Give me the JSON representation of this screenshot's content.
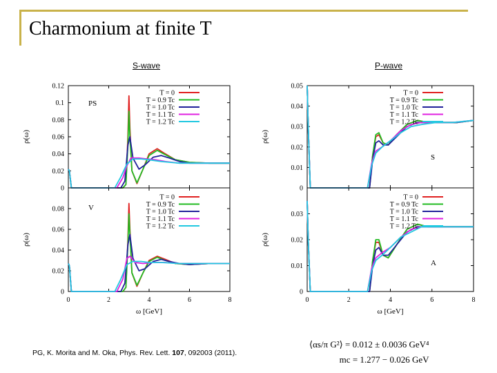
{
  "slide": {
    "title": "Charmonium at finite T",
    "panel_left_label": "S-wave",
    "panel_right_label": "P-wave",
    "citation_pre": "PG, K. Morita and M. Oka, Phys. Rev. Lett. ",
    "citation_vol": "107",
    "citation_post": ", 092003 (2011).",
    "formula_line1_lhs": "⟨αs/π G²⟩",
    "formula_line1_rhs": "= 0.012 ± 0.0036 GeV⁴",
    "formula_line2_lhs": "mc",
    "formula_line2_rhs": "= 1.277 − 0.026 GeV",
    "accent_color": "#c9b24a"
  },
  "legend": [
    "T = 0",
    "T = 0.9 Tc",
    "T = 1.0 Tc",
    "T = 1.1 Tc",
    "T = 1.2 Tc"
  ],
  "series_colors": [
    "#e02020",
    "#22bb22",
    "#20209a",
    "#e020e0",
    "#20c8e0"
  ],
  "chart_data": [
    {
      "type": "line",
      "panel": "S-wave PS",
      "label": "PS",
      "xlabel": "ω [GeV]",
      "ylabel": "ρ(ω)",
      "xlim": [
        0,
        8
      ],
      "ylim": [
        0,
        0.12
      ],
      "xticks": [
        "0",
        "2",
        "4",
        "6",
        "8"
      ],
      "yticks": [
        "0",
        "0.02",
        "0.04",
        "0.06",
        "0.08",
        "0.1",
        "0.12"
      ],
      "series": [
        {
          "name": "T = 0",
          "x": [
            0,
            0.05,
            0.15,
            2.7,
            2.85,
            2.95,
            3.0,
            3.05,
            3.15,
            3.4,
            3.7,
            4.0,
            4.4,
            4.8,
            5.3,
            6.0,
            7.0,
            8.0
          ],
          "y": [
            0.022,
            0.02,
            0,
            0,
            0.004,
            0.06,
            0.108,
            0.07,
            0.02,
            0.005,
            0.022,
            0.04,
            0.046,
            0.04,
            0.033,
            0.03,
            0.029,
            0.029
          ]
        },
        {
          "name": "T = 0.9 Tc",
          "x": [
            0,
            0.05,
            0.15,
            2.7,
            2.85,
            2.95,
            3.0,
            3.05,
            3.15,
            3.4,
            3.7,
            4.0,
            4.4,
            4.8,
            5.3,
            6.0,
            7.0,
            8.0
          ],
          "y": [
            0.022,
            0.02,
            0,
            0,
            0.004,
            0.05,
            0.09,
            0.06,
            0.02,
            0.006,
            0.022,
            0.038,
            0.044,
            0.039,
            0.033,
            0.03,
            0.029,
            0.029
          ]
        },
        {
          "name": "T = 1.0 Tc",
          "x": [
            0,
            0.05,
            0.15,
            2.6,
            2.8,
            2.95,
            3.05,
            3.2,
            3.5,
            3.8,
            4.2,
            4.6,
            5.0,
            5.5,
            6.0,
            7.0,
            8.0
          ],
          "y": [
            0.022,
            0.02,
            0,
            0,
            0.008,
            0.05,
            0.06,
            0.035,
            0.022,
            0.027,
            0.036,
            0.038,
            0.035,
            0.031,
            0.029,
            0.029,
            0.029
          ]
        },
        {
          "name": "T = 1.1 Tc",
          "x": [
            0,
            0.05,
            0.15,
            2.4,
            2.7,
            2.9,
            3.1,
            3.5,
            3.9,
            4.3,
            4.8,
            5.5,
            6.5,
            8.0
          ],
          "y": [
            0.022,
            0.02,
            0,
            0,
            0.012,
            0.026,
            0.035,
            0.035,
            0.034,
            0.033,
            0.031,
            0.029,
            0.029,
            0.029
          ]
        },
        {
          "name": "T = 1.2 Tc",
          "x": [
            0,
            0.05,
            0.15,
            2.3,
            2.6,
            2.9,
            3.2,
            3.6,
            4.0,
            4.6,
            5.5,
            6.5,
            8.0
          ],
          "y": [
            0.022,
            0.02,
            0,
            0,
            0.013,
            0.028,
            0.034,
            0.034,
            0.033,
            0.031,
            0.029,
            0.029,
            0.029
          ]
        }
      ]
    },
    {
      "type": "line",
      "panel": "S-wave V",
      "label": "V",
      "xlabel": "ω [GeV]",
      "ylabel": "ρ(ω)",
      "xlim": [
        0,
        8
      ],
      "ylim": [
        0,
        0.1
      ],
      "xticks": [
        "0",
        "2",
        "4",
        "6",
        "8"
      ],
      "yticks": [
        "0",
        "0.02",
        "0.04",
        "0.06",
        "0.08"
      ],
      "series": [
        {
          "name": "T = 0",
          "x": [
            0,
            0.05,
            0.15,
            2.7,
            2.85,
            2.95,
            3.0,
            3.05,
            3.15,
            3.4,
            3.7,
            4.0,
            4.4,
            4.8,
            5.3,
            6.0,
            7.0,
            8.0
          ],
          "y": [
            0.027,
            0.025,
            0,
            0,
            0.004,
            0.05,
            0.085,
            0.06,
            0.018,
            0.005,
            0.018,
            0.03,
            0.034,
            0.031,
            0.027,
            0.026,
            0.027,
            0.027
          ]
        },
        {
          "name": "T = 0.9 Tc",
          "x": [
            0,
            0.05,
            0.15,
            2.7,
            2.85,
            2.95,
            3.0,
            3.05,
            3.15,
            3.4,
            3.7,
            4.0,
            4.4,
            4.8,
            5.3,
            6.0,
            7.0,
            8.0
          ],
          "y": [
            0.027,
            0.025,
            0,
            0,
            0.004,
            0.045,
            0.075,
            0.055,
            0.018,
            0.006,
            0.018,
            0.029,
            0.033,
            0.03,
            0.027,
            0.026,
            0.027,
            0.027
          ]
        },
        {
          "name": "T = 1.0 Tc",
          "x": [
            0,
            0.05,
            0.15,
            2.6,
            2.8,
            2.95,
            3.05,
            3.2,
            3.5,
            3.8,
            4.2,
            4.6,
            5.0,
            5.5,
            6.0,
            7.0,
            8.0
          ],
          "y": [
            0.027,
            0.025,
            0,
            0,
            0.008,
            0.045,
            0.055,
            0.032,
            0.02,
            0.022,
            0.029,
            0.031,
            0.029,
            0.027,
            0.026,
            0.027,
            0.027
          ]
        },
        {
          "name": "T = 1.1 Tc",
          "x": [
            0,
            0.05,
            0.15,
            2.4,
            2.7,
            2.9,
            3.05,
            3.3,
            3.7,
            4.2,
            4.8,
            5.5,
            6.5,
            8.0
          ],
          "y": [
            0.027,
            0.025,
            0,
            0,
            0.012,
            0.032,
            0.034,
            0.028,
            0.027,
            0.028,
            0.028,
            0.027,
            0.027,
            0.027
          ]
        },
        {
          "name": "T = 1.2 Tc",
          "x": [
            0,
            0.05,
            0.15,
            2.3,
            2.6,
            2.9,
            3.2,
            3.6,
            4.0,
            4.6,
            5.5,
            6.5,
            8.0
          ],
          "y": [
            0.027,
            0.025,
            0,
            0,
            0.012,
            0.026,
            0.029,
            0.029,
            0.028,
            0.028,
            0.027,
            0.027,
            0.027
          ]
        }
      ]
    },
    {
      "type": "line",
      "panel": "P-wave S",
      "label": "S",
      "xlabel": "ω [GeV]",
      "ylabel": "ρ(ω)",
      "xlim": [
        0,
        8
      ],
      "ylim": [
        0,
        0.05
      ],
      "xticks": [
        "0",
        "2",
        "4",
        "6",
        "8"
      ],
      "yticks": [
        "0",
        "0.01",
        "0.02",
        "0.03",
        "0.04",
        "0.05"
      ],
      "series": [
        {
          "name": "T = 0",
          "x": [
            0,
            0.05,
            0.15,
            3.0,
            3.15,
            3.3,
            3.45,
            3.65,
            3.9,
            4.3,
            4.8,
            5.3,
            5.8,
            6.5,
            7.2,
            8.0
          ],
          "y": [
            0.05,
            0.03,
            0,
            0,
            0.016,
            0.025,
            0.026,
            0.022,
            0.021,
            0.026,
            0.031,
            0.033,
            0.032,
            0.032,
            0.032,
            0.033
          ]
        },
        {
          "name": "T = 0.9 Tc",
          "x": [
            0,
            0.05,
            0.15,
            3.0,
            3.15,
            3.3,
            3.45,
            3.65,
            3.9,
            4.3,
            4.8,
            5.3,
            5.8,
            6.5,
            7.2,
            8.0
          ],
          "y": [
            0.05,
            0.03,
            0,
            0,
            0.016,
            0.026,
            0.027,
            0.022,
            0.021,
            0.026,
            0.031,
            0.033,
            0.032,
            0.032,
            0.032,
            0.033
          ]
        },
        {
          "name": "T = 1.0 Tc",
          "x": [
            0,
            0.05,
            0.15,
            3.0,
            3.15,
            3.3,
            3.45,
            3.65,
            3.9,
            4.3,
            4.8,
            5.3,
            5.8,
            6.5,
            7.2,
            8.0
          ],
          "y": [
            0.05,
            0.03,
            0,
            0,
            0.014,
            0.022,
            0.023,
            0.021,
            0.021,
            0.025,
            0.03,
            0.032,
            0.032,
            0.032,
            0.032,
            0.033
          ]
        },
        {
          "name": "T = 1.1 Tc",
          "x": [
            0,
            0.05,
            0.15,
            2.9,
            3.1,
            3.3,
            3.6,
            4.0,
            4.5,
            5.0,
            5.5,
            6.2,
            7.0,
            8.0
          ],
          "y": [
            0.05,
            0.03,
            0,
            0,
            0.012,
            0.018,
            0.02,
            0.023,
            0.028,
            0.031,
            0.032,
            0.032,
            0.032,
            0.033
          ]
        },
        {
          "name": "T = 1.2 Tc",
          "x": [
            0,
            0.05,
            0.15,
            2.9,
            3.1,
            3.3,
            3.6,
            4.0,
            4.5,
            5.0,
            5.5,
            6.2,
            7.0,
            8.0
          ],
          "y": [
            0.05,
            0.03,
            0,
            0,
            0.011,
            0.017,
            0.02,
            0.023,
            0.027,
            0.03,
            0.031,
            0.032,
            0.032,
            0.033
          ]
        }
      ]
    },
    {
      "type": "line",
      "panel": "P-wave A",
      "label": "A",
      "xlabel": "ω [GeV]",
      "ylabel": "ρ(ω)",
      "xlim": [
        0,
        8
      ],
      "ylim": [
        0,
        0.04
      ],
      "xticks": [
        "0",
        "2",
        "4",
        "6",
        "8"
      ],
      "yticks": [
        "0",
        "0.01",
        "0.02",
        "0.03"
      ],
      "series": [
        {
          "name": "T = 0",
          "x": [
            0,
            0.05,
            0.15,
            3.0,
            3.15,
            3.3,
            3.45,
            3.65,
            3.9,
            4.3,
            4.8,
            5.3,
            5.8,
            6.5,
            7.2,
            8.0
          ],
          "y": [
            0.035,
            0.02,
            0,
            0,
            0.012,
            0.019,
            0.019,
            0.014,
            0.013,
            0.018,
            0.024,
            0.026,
            0.025,
            0.025,
            0.025,
            0.025
          ]
        },
        {
          "name": "T = 0.9 Tc",
          "x": [
            0,
            0.05,
            0.15,
            3.0,
            3.15,
            3.3,
            3.45,
            3.65,
            3.9,
            4.3,
            4.8,
            5.3,
            5.8,
            6.5,
            7.2,
            8.0
          ],
          "y": [
            0.035,
            0.02,
            0,
            0,
            0.012,
            0.02,
            0.02,
            0.014,
            0.013,
            0.018,
            0.024,
            0.026,
            0.025,
            0.025,
            0.025,
            0.025
          ]
        },
        {
          "name": "T = 1.0 Tc",
          "x": [
            0,
            0.05,
            0.15,
            3.0,
            3.15,
            3.3,
            3.45,
            3.65,
            3.9,
            4.3,
            4.8,
            5.3,
            5.8,
            6.5,
            7.2,
            8.0
          ],
          "y": [
            0.035,
            0.02,
            0,
            0,
            0.01,
            0.016,
            0.017,
            0.014,
            0.014,
            0.018,
            0.023,
            0.025,
            0.025,
            0.025,
            0.025,
            0.025
          ]
        },
        {
          "name": "T = 1.1 Tc",
          "x": [
            0,
            0.05,
            0.15,
            2.9,
            3.1,
            3.3,
            3.6,
            4.0,
            4.5,
            5.0,
            5.5,
            6.2,
            7.0,
            8.0
          ],
          "y": [
            0.035,
            0.02,
            0,
            0,
            0.009,
            0.013,
            0.015,
            0.017,
            0.021,
            0.024,
            0.025,
            0.025,
            0.025,
            0.025
          ]
        },
        {
          "name": "T = 1.2 Tc",
          "x": [
            0,
            0.05,
            0.15,
            2.9,
            3.1,
            3.3,
            3.6,
            4.0,
            4.5,
            5.0,
            5.5,
            6.2,
            7.0,
            8.0
          ],
          "y": [
            0.035,
            0.02,
            0,
            0,
            0.008,
            0.012,
            0.014,
            0.017,
            0.021,
            0.023,
            0.025,
            0.025,
            0.025,
            0.025
          ]
        }
      ]
    }
  ]
}
